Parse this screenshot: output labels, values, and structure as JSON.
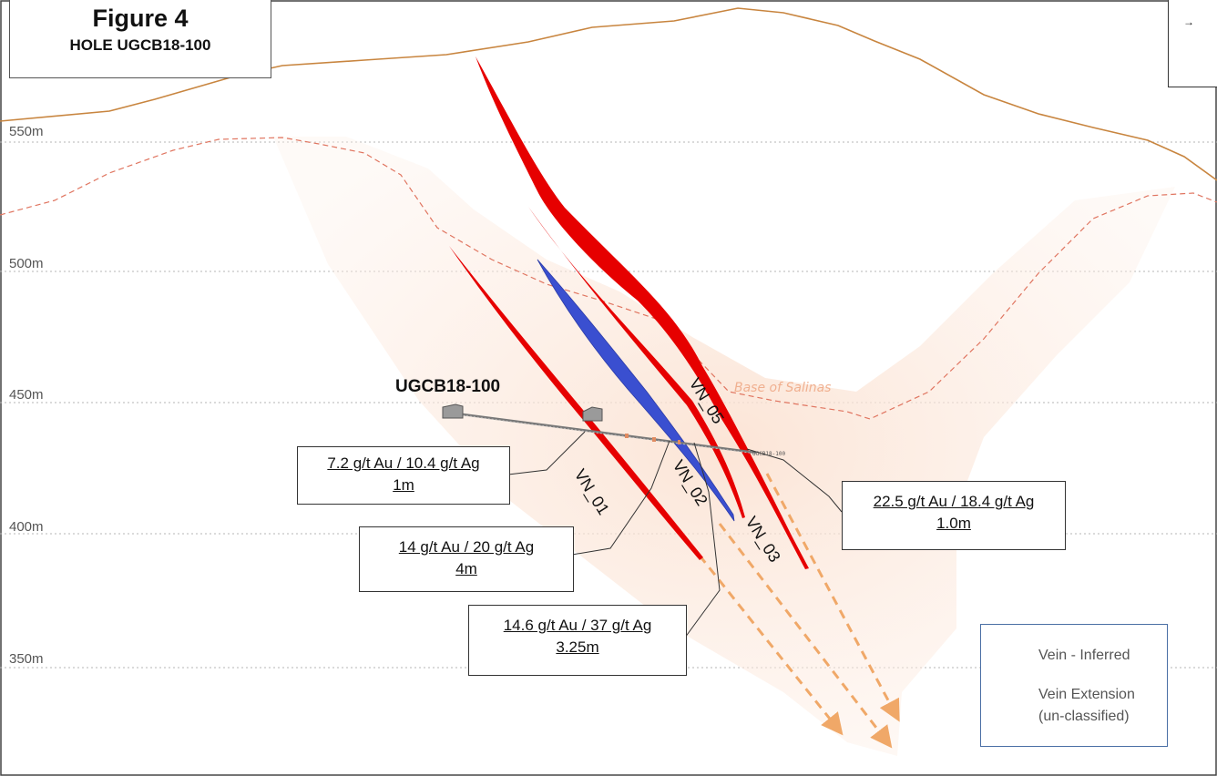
{
  "title": {
    "figure": "Figure 4",
    "hole": "HOLE UGCB18-100"
  },
  "north_arrow": {
    "glyph": "→",
    "icon": "north-arrow-icon"
  },
  "elevations": [
    "550m",
    "500m",
    "450m",
    "400m",
    "350m"
  ],
  "hole": {
    "label": "UGCB18-100",
    "tag": "UGCB18-100"
  },
  "surface_label": "Base of Salinas",
  "veins": [
    {
      "label": "VN_01",
      "type": "Vein Extension"
    },
    {
      "label": "VN_02",
      "type": "Vein - Inferred"
    },
    {
      "label": "VN_03",
      "type": "Vein Extension"
    },
    {
      "label": "VN_05",
      "type": "Vein Extension"
    }
  ],
  "intercepts": [
    {
      "grade": "7.2 g/t Au / 10.4 g/t Ag",
      "width": "1m"
    },
    {
      "grade": "14 g/t Au / 20 g/t Ag",
      "width": "4m"
    },
    {
      "grade": "14.6 g/t Au / 37 g/t Ag",
      "width": "3.25m"
    },
    {
      "grade": "22.5 g/t Au / 18.4 g/t Ag",
      "width": "1.0m"
    }
  ],
  "legend": {
    "items": [
      {
        "label": "Vein - Inferred",
        "color": "#3a4fd0"
      },
      {
        "label": "Vein Extension",
        "label2": "(un-classified)",
        "color": "#e60000"
      }
    ]
  },
  "colors": {
    "topography": "#c8853f",
    "base_of_salinas": "#e07560",
    "extension_zone": "#fbe3d4",
    "extension_arrows": "#f0a868",
    "inferred_vein": "#3a4fd0",
    "extension_vein": "#e60000"
  }
}
